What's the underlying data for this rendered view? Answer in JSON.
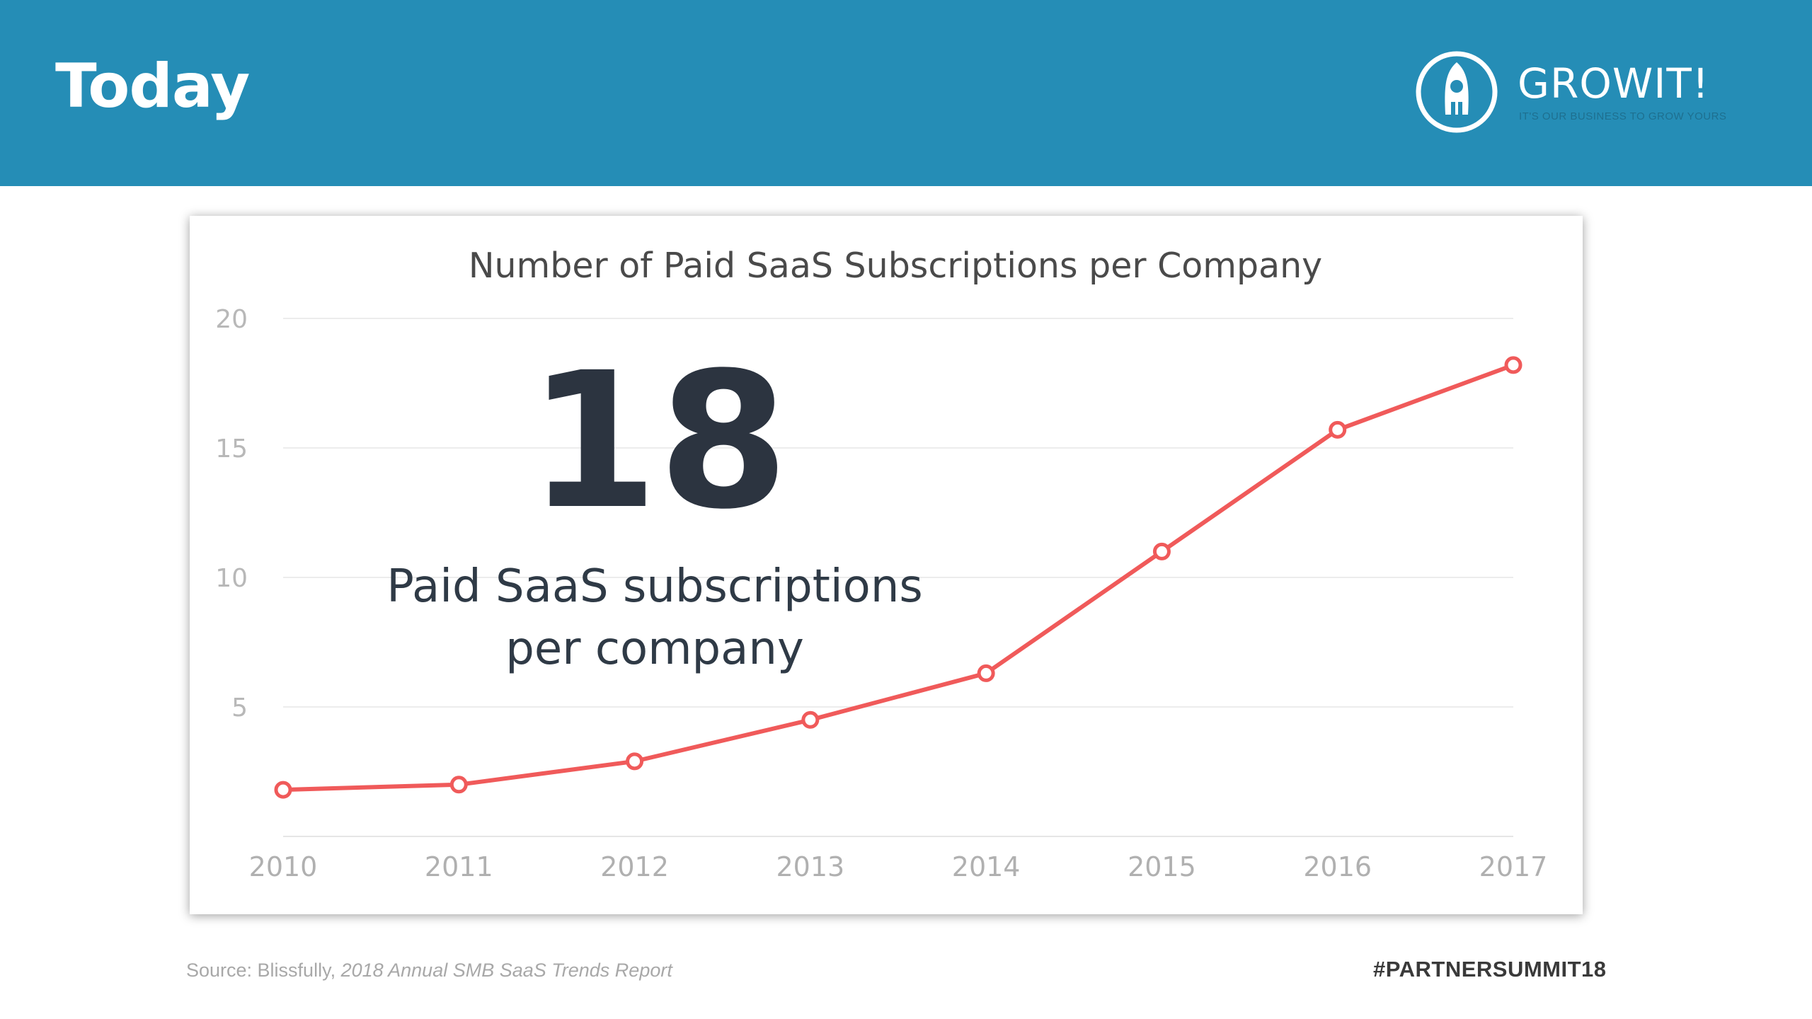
{
  "header": {
    "title": "Today",
    "logo": {
      "name": "GROWIT!",
      "tagline": "It's our business to grow yours",
      "icon": "rocket-icon"
    },
    "accent_color": "#258db6"
  },
  "chart_data": {
    "type": "line",
    "title": "Number of Paid SaaS Subscriptions per Company",
    "xlabel": "",
    "ylabel": "",
    "categories": [
      "2010",
      "2011",
      "2012",
      "2013",
      "2014",
      "2015",
      "2016",
      "2017"
    ],
    "series": [
      {
        "values": [
          1.8,
          2.0,
          2.9,
          4.5,
          6.3,
          11.0,
          15.7,
          18.2
        ],
        "color": "#f05a5a"
      }
    ],
    "ylim": [
      0,
      20
    ],
    "yticks": [
      "20",
      "15",
      "10",
      "5"
    ],
    "grid": true,
    "annotation": {
      "big_number": "18",
      "caption_line1": "Paid SaaS subscriptions",
      "caption_line2": "per company"
    }
  },
  "footer": {
    "source_prefix": "Source: Blissfully, ",
    "source_report": "2018 Annual SMB SaaS Trends Report",
    "hashtag": "#PARTNERSUMMIT18"
  }
}
